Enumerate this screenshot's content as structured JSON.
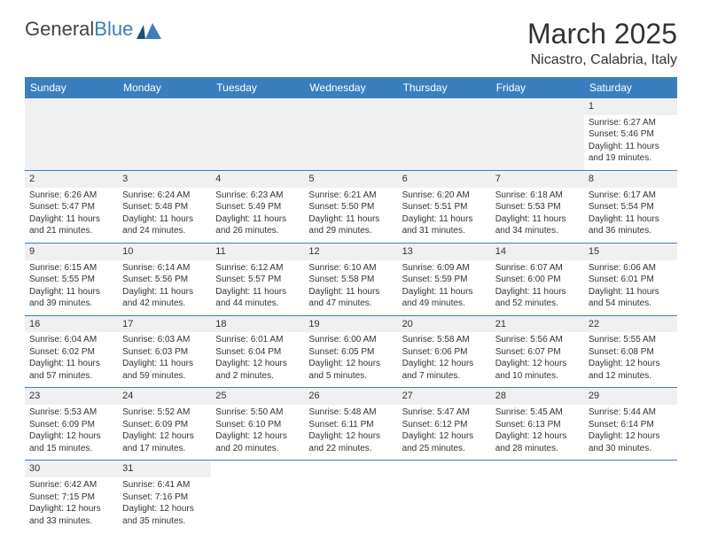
{
  "logo": {
    "text_dark": "General",
    "text_blue": "Blue"
  },
  "title": "March 2025",
  "location": "Nicastro, Calabria, Italy",
  "colors": {
    "header_bg": "#3b7ec0",
    "header_fg": "#ffffff",
    "daynum_bg": "#f0f0f0",
    "border": "#3b7ec0",
    "text": "#333333"
  },
  "weekdays": [
    "Sunday",
    "Monday",
    "Tuesday",
    "Wednesday",
    "Thursday",
    "Friday",
    "Saturday"
  ],
  "weeks": [
    [
      null,
      null,
      null,
      null,
      null,
      null,
      {
        "n": "1",
        "sr": "Sunrise: 6:27 AM",
        "ss": "Sunset: 5:46 PM",
        "d1": "Daylight: 11 hours",
        "d2": "and 19 minutes."
      }
    ],
    [
      {
        "n": "2",
        "sr": "Sunrise: 6:26 AM",
        "ss": "Sunset: 5:47 PM",
        "d1": "Daylight: 11 hours",
        "d2": "and 21 minutes."
      },
      {
        "n": "3",
        "sr": "Sunrise: 6:24 AM",
        "ss": "Sunset: 5:48 PM",
        "d1": "Daylight: 11 hours",
        "d2": "and 24 minutes."
      },
      {
        "n": "4",
        "sr": "Sunrise: 6:23 AM",
        "ss": "Sunset: 5:49 PM",
        "d1": "Daylight: 11 hours",
        "d2": "and 26 minutes."
      },
      {
        "n": "5",
        "sr": "Sunrise: 6:21 AM",
        "ss": "Sunset: 5:50 PM",
        "d1": "Daylight: 11 hours",
        "d2": "and 29 minutes."
      },
      {
        "n": "6",
        "sr": "Sunrise: 6:20 AM",
        "ss": "Sunset: 5:51 PM",
        "d1": "Daylight: 11 hours",
        "d2": "and 31 minutes."
      },
      {
        "n": "7",
        "sr": "Sunrise: 6:18 AM",
        "ss": "Sunset: 5:53 PM",
        "d1": "Daylight: 11 hours",
        "d2": "and 34 minutes."
      },
      {
        "n": "8",
        "sr": "Sunrise: 6:17 AM",
        "ss": "Sunset: 5:54 PM",
        "d1": "Daylight: 11 hours",
        "d2": "and 36 minutes."
      }
    ],
    [
      {
        "n": "9",
        "sr": "Sunrise: 6:15 AM",
        "ss": "Sunset: 5:55 PM",
        "d1": "Daylight: 11 hours",
        "d2": "and 39 minutes."
      },
      {
        "n": "10",
        "sr": "Sunrise: 6:14 AM",
        "ss": "Sunset: 5:56 PM",
        "d1": "Daylight: 11 hours",
        "d2": "and 42 minutes."
      },
      {
        "n": "11",
        "sr": "Sunrise: 6:12 AM",
        "ss": "Sunset: 5:57 PM",
        "d1": "Daylight: 11 hours",
        "d2": "and 44 minutes."
      },
      {
        "n": "12",
        "sr": "Sunrise: 6:10 AM",
        "ss": "Sunset: 5:58 PM",
        "d1": "Daylight: 11 hours",
        "d2": "and 47 minutes."
      },
      {
        "n": "13",
        "sr": "Sunrise: 6:09 AM",
        "ss": "Sunset: 5:59 PM",
        "d1": "Daylight: 11 hours",
        "d2": "and 49 minutes."
      },
      {
        "n": "14",
        "sr": "Sunrise: 6:07 AM",
        "ss": "Sunset: 6:00 PM",
        "d1": "Daylight: 11 hours",
        "d2": "and 52 minutes."
      },
      {
        "n": "15",
        "sr": "Sunrise: 6:06 AM",
        "ss": "Sunset: 6:01 PM",
        "d1": "Daylight: 11 hours",
        "d2": "and 54 minutes."
      }
    ],
    [
      {
        "n": "16",
        "sr": "Sunrise: 6:04 AM",
        "ss": "Sunset: 6:02 PM",
        "d1": "Daylight: 11 hours",
        "d2": "and 57 minutes."
      },
      {
        "n": "17",
        "sr": "Sunrise: 6:03 AM",
        "ss": "Sunset: 6:03 PM",
        "d1": "Daylight: 11 hours",
        "d2": "and 59 minutes."
      },
      {
        "n": "18",
        "sr": "Sunrise: 6:01 AM",
        "ss": "Sunset: 6:04 PM",
        "d1": "Daylight: 12 hours",
        "d2": "and 2 minutes."
      },
      {
        "n": "19",
        "sr": "Sunrise: 6:00 AM",
        "ss": "Sunset: 6:05 PM",
        "d1": "Daylight: 12 hours",
        "d2": "and 5 minutes."
      },
      {
        "n": "20",
        "sr": "Sunrise: 5:58 AM",
        "ss": "Sunset: 6:06 PM",
        "d1": "Daylight: 12 hours",
        "d2": "and 7 minutes."
      },
      {
        "n": "21",
        "sr": "Sunrise: 5:56 AM",
        "ss": "Sunset: 6:07 PM",
        "d1": "Daylight: 12 hours",
        "d2": "and 10 minutes."
      },
      {
        "n": "22",
        "sr": "Sunrise: 5:55 AM",
        "ss": "Sunset: 6:08 PM",
        "d1": "Daylight: 12 hours",
        "d2": "and 12 minutes."
      }
    ],
    [
      {
        "n": "23",
        "sr": "Sunrise: 5:53 AM",
        "ss": "Sunset: 6:09 PM",
        "d1": "Daylight: 12 hours",
        "d2": "and 15 minutes."
      },
      {
        "n": "24",
        "sr": "Sunrise: 5:52 AM",
        "ss": "Sunset: 6:09 PM",
        "d1": "Daylight: 12 hours",
        "d2": "and 17 minutes."
      },
      {
        "n": "25",
        "sr": "Sunrise: 5:50 AM",
        "ss": "Sunset: 6:10 PM",
        "d1": "Daylight: 12 hours",
        "d2": "and 20 minutes."
      },
      {
        "n": "26",
        "sr": "Sunrise: 5:48 AM",
        "ss": "Sunset: 6:11 PM",
        "d1": "Daylight: 12 hours",
        "d2": "and 22 minutes."
      },
      {
        "n": "27",
        "sr": "Sunrise: 5:47 AM",
        "ss": "Sunset: 6:12 PM",
        "d1": "Daylight: 12 hours",
        "d2": "and 25 minutes."
      },
      {
        "n": "28",
        "sr": "Sunrise: 5:45 AM",
        "ss": "Sunset: 6:13 PM",
        "d1": "Daylight: 12 hours",
        "d2": "and 28 minutes."
      },
      {
        "n": "29",
        "sr": "Sunrise: 5:44 AM",
        "ss": "Sunset: 6:14 PM",
        "d1": "Daylight: 12 hours",
        "d2": "and 30 minutes."
      }
    ],
    [
      {
        "n": "30",
        "sr": "Sunrise: 6:42 AM",
        "ss": "Sunset: 7:15 PM",
        "d1": "Daylight: 12 hours",
        "d2": "and 33 minutes."
      },
      {
        "n": "31",
        "sr": "Sunrise: 6:41 AM",
        "ss": "Sunset: 7:16 PM",
        "d1": "Daylight: 12 hours",
        "d2": "and 35 minutes."
      },
      null,
      null,
      null,
      null,
      null
    ]
  ]
}
